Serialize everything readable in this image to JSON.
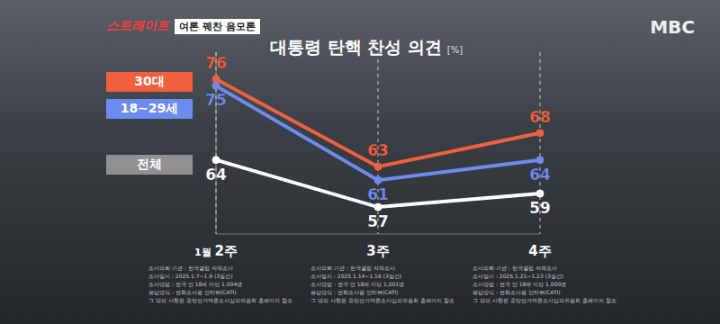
{
  "broadcast": {
    "logo": "스트레이트",
    "segment": "여론 꿰찬 음모론",
    "channel": "MBC"
  },
  "chart_data": {
    "type": "line",
    "title": "대통령 탄핵 찬성 의견",
    "y_label": "[%]",
    "categories": [
      "1월 2주",
      "3주",
      "4주"
    ],
    "series": [
      {
        "name": "30대",
        "color": "#f0603f",
        "values": [
          76,
          63,
          68
        ]
      },
      {
        "name": "18~29세",
        "color": "#6d8cf0",
        "values": [
          75,
          61,
          64
        ]
      },
      {
        "name": "전체",
        "color": "#ffffff",
        "values": [
          64,
          57,
          59
        ]
      }
    ],
    "ylim": [
      53,
      80
    ],
    "grid": true,
    "data_labels": true,
    "tick_labels": "x",
    "annotations": [
      [
        "조사의뢰·기관 : 한국갤럽 자체조사",
        "조사일시 : 2025.1.7~1.9 (3일간)",
        "조사방법 : 전국 만 18세 이상 1,004명",
        "응답방식 : 전화조사원 인터뷰(CATI)",
        "그 밖의 사항은 중앙선거여론조사심의위원회 홈페이지 참조"
      ],
      [
        "조사의뢰·기관 : 한국갤럽 자체조사",
        "조사일시 : 2025.1.14~1.16 (3일간)",
        "조사방법 : 전국 만 18세 이상 1,001명",
        "응답방식 : 전화조사원 인터뷰(CATI)",
        "그 밖의 사항은 중앙선거여론조사심의위원회 홈페이지 참조"
      ],
      [
        "조사의뢰·기관 : 한국갤럽 자체조사",
        "조사일시 : 2025.1.21~1.23 (3일간)",
        "조사방법 : 전국 만 18세 이상 1,000명",
        "응답방식 : 전화조사원 인터뷰(CATI)",
        "그 밖의 사항은 중앙선거여론조사심의위원회 홈페이지 참조"
      ]
    ]
  }
}
